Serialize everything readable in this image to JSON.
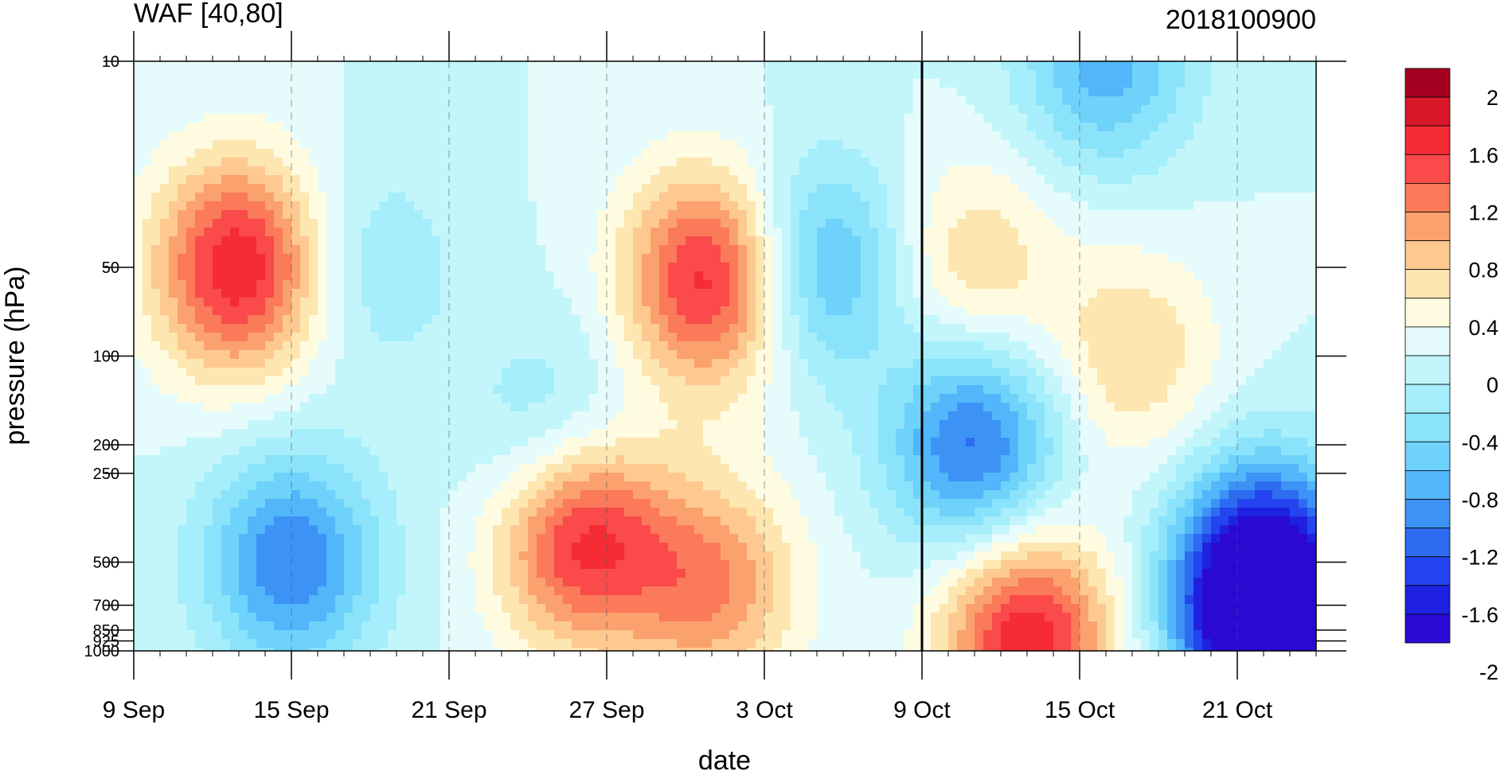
{
  "chart_data": {
    "type": "heatmap",
    "subtype": "time-pressure filled contour",
    "title": "WAF [40,80]",
    "right_title": "2018100900",
    "xlabel": "date",
    "ylabel": "pressure (hPa)",
    "x_range": [
      "2018-09-09",
      "2018-10-24"
    ],
    "x_ticks": [
      {
        "date": "2018-09-09",
        "label": "9 Sep"
      },
      {
        "date": "2018-09-15",
        "label": "15 Sep"
      },
      {
        "date": "2018-09-21",
        "label": "21 Sep"
      },
      {
        "date": "2018-09-27",
        "label": "27 Sep"
      },
      {
        "date": "2018-10-03",
        "label": "3 Oct"
      },
      {
        "date": "2018-10-09",
        "label": "9 Oct"
      },
      {
        "date": "2018-10-15",
        "label": "15 Oct"
      },
      {
        "date": "2018-10-21",
        "label": "21 Oct"
      }
    ],
    "y_scale": "log",
    "y_inverted": true,
    "y_range": [
      1000,
      10
    ],
    "y_ticks": [
      {
        "value": 10,
        "label": "10"
      },
      {
        "value": 50,
        "label": "50"
      },
      {
        "value": 100,
        "label": "100"
      },
      {
        "value": 200,
        "label": "200"
      },
      {
        "value": 250,
        "label": "250"
      },
      {
        "value": 500,
        "label": "500"
      },
      {
        "value": 700,
        "label": "700"
      },
      {
        "value": 850,
        "label": "850"
      },
      {
        "value": 925,
        "label": "925"
      },
      {
        "value": 1000,
        "label": "1000"
      }
    ],
    "analysis_marker_date": "2018-10-09",
    "contour_interval": 0.2,
    "colorbar": {
      "labels": [
        "2",
        "1.6",
        "1.2",
        "0.8",
        "0.4",
        "0",
        "-0.4",
        "-0.8",
        "-1.2",
        "-1.6",
        "-2"
      ],
      "colors": [
        "#a50021",
        "#d9172a",
        "#f52c33",
        "#fa4a4a",
        "#fa7a5a",
        "#fba16e",
        "#fdc991",
        "#fde6b0",
        "#fefbe0",
        "#e6fbfb",
        "#c3f6fb",
        "#a6eefb",
        "#8ae3fa",
        "#6ed2fa",
        "#52b6fa",
        "#3c93f5",
        "#2d6cf0",
        "#2344ee",
        "#1f21e0",
        "#2a0ad2"
      ]
    },
    "features": [
      {
        "date": "2018-09-13",
        "pressure_hPa": 50,
        "value": 1.6
      },
      {
        "date": "2018-09-15",
        "pressure_hPa": 500,
        "value": -1.2
      },
      {
        "date": "2018-09-18",
        "pressure_hPa": 50,
        "value": -0.4
      },
      {
        "date": "2018-09-25",
        "pressure_hPa": 200,
        "value": -0.6
      },
      {
        "date": "2018-09-26",
        "pressure_hPa": 400,
        "value": 1.6
      },
      {
        "date": "2018-10-01",
        "pressure_hPa": 55,
        "value": 1.6
      },
      {
        "date": "2018-10-01",
        "pressure_hPa": 600,
        "value": 1.0
      },
      {
        "date": "2018-10-05",
        "pressure_hPa": 50,
        "value": -1.0
      },
      {
        "date": "2018-10-11",
        "pressure_hPa": 200,
        "value": -1.3
      },
      {
        "date": "2018-10-11",
        "pressure_hPa": 50,
        "value": 0.6
      },
      {
        "date": "2018-10-13",
        "pressure_hPa": 900,
        "value": 1.6
      },
      {
        "date": "2018-10-17",
        "pressure_hPa": 100,
        "value": 0.6
      },
      {
        "date": "2018-10-16",
        "pressure_hPa": 10,
        "value": -0.9
      },
      {
        "date": "2018-10-22",
        "pressure_hPa": 850,
        "value": -1.9
      },
      {
        "date": "2018-10-22",
        "pressure_hPa": 500,
        "value": -1.5
      }
    ]
  }
}
